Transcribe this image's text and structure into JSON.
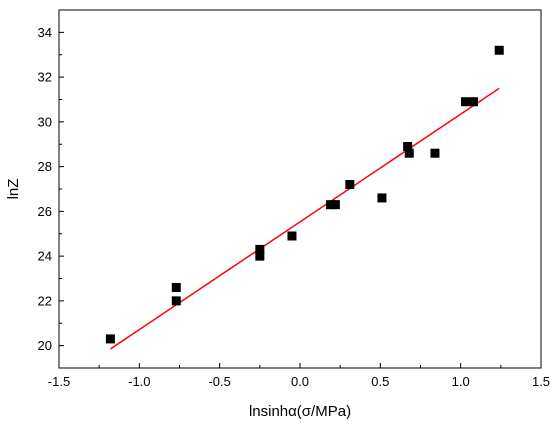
{
  "chart_data": {
    "type": "scatter",
    "title": "",
    "xlabel": "lnsinhα(σ/MPa)",
    "ylabel": "lnZ",
    "xlim": [
      -1.5,
      1.5
    ],
    "ylim": [
      19,
      35
    ],
    "x_ticks": [
      -1.5,
      -1.0,
      -0.5,
      0.0,
      0.5,
      1.0,
      1.5
    ],
    "x_tick_labels": [
      "-1.5",
      "-1.0",
      "-0.5",
      "0.0",
      "0.5",
      "1.0",
      "1.5"
    ],
    "y_ticks": [
      20,
      22,
      24,
      26,
      28,
      30,
      32,
      34
    ],
    "y_tick_labels": [
      "20",
      "22",
      "24",
      "26",
      "28",
      "30",
      "32",
      "34"
    ],
    "grid": false,
    "legend": "none",
    "series": [
      {
        "type": "scatter",
        "marker": "square",
        "color": "#000000",
        "points": [
          {
            "x": -1.18,
            "y": 20.3
          },
          {
            "x": -0.77,
            "y": 22.6
          },
          {
            "x": -0.77,
            "y": 22.0
          },
          {
            "x": -0.25,
            "y": 24.3
          },
          {
            "x": -0.25,
            "y": 24.0
          },
          {
            "x": -0.05,
            "y": 24.9
          },
          {
            "x": 0.19,
            "y": 26.3
          },
          {
            "x": 0.22,
            "y": 26.3
          },
          {
            "x": 0.31,
            "y": 27.2
          },
          {
            "x": 0.51,
            "y": 26.6
          },
          {
            "x": 0.67,
            "y": 28.9
          },
          {
            "x": 0.68,
            "y": 28.6
          },
          {
            "x": 0.84,
            "y": 28.6
          },
          {
            "x": 1.03,
            "y": 30.9
          },
          {
            "x": 1.08,
            "y": 30.9
          },
          {
            "x": 1.24,
            "y": 33.2
          }
        ]
      },
      {
        "type": "line",
        "color": "#ff0000",
        "points": [
          {
            "x": -1.18,
            "y": 19.85
          },
          {
            "x": 1.24,
            "y": 31.5
          }
        ]
      }
    ]
  }
}
